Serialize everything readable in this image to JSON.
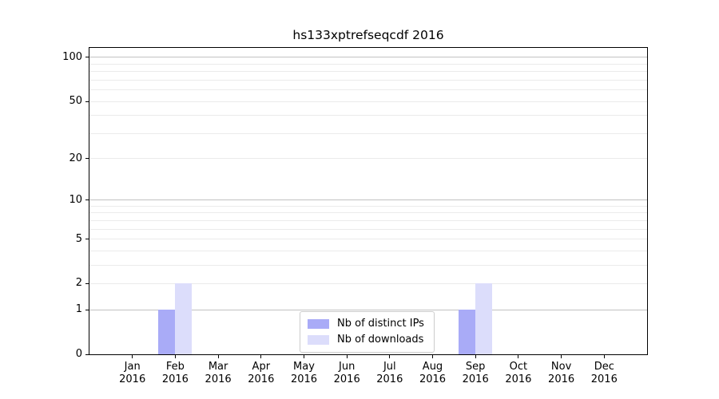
{
  "chart_data": {
    "type": "bar",
    "title": "hs133xptrefseqcdf 2016",
    "categories": [
      "Jan 2016",
      "Feb 2016",
      "Mar 2016",
      "Apr 2016",
      "May 2016",
      "Jun 2016",
      "Jul 2016",
      "Aug 2016",
      "Sep 2016",
      "Oct 2016",
      "Nov 2016",
      "Dec 2016"
    ],
    "series": [
      {
        "name": "Nb of distinct IPs",
        "color": "#a9abf7",
        "values": [
          0,
          1,
          0,
          0,
          0,
          0,
          0,
          0,
          1,
          0,
          0,
          0
        ]
      },
      {
        "name": "Nb of downloads",
        "color": "#dcddfb",
        "values": [
          0,
          2,
          0,
          0,
          0,
          0,
          0,
          0,
          2,
          0,
          0,
          0
        ]
      }
    ],
    "xlabel": "",
    "ylabel": "",
    "yscale": "log1p",
    "ylim": [
      0,
      116
    ],
    "yticks": [
      0,
      1,
      2,
      5,
      10,
      20,
      50,
      100
    ],
    "major_gridlines": [
      1,
      10,
      100
    ],
    "minor_gridlines": [
      2,
      3,
      4,
      5,
      6,
      7,
      8,
      9,
      20,
      30,
      40,
      50,
      60,
      70,
      80,
      90
    ],
    "grid": "on",
    "legend_position": "lower center"
  },
  "colors": {
    "major_grid": "#c2c2c2",
    "minor_grid": "#ebebeb",
    "spine": "#000000",
    "background": "#ffffff",
    "legend_border": "#cccccc"
  }
}
